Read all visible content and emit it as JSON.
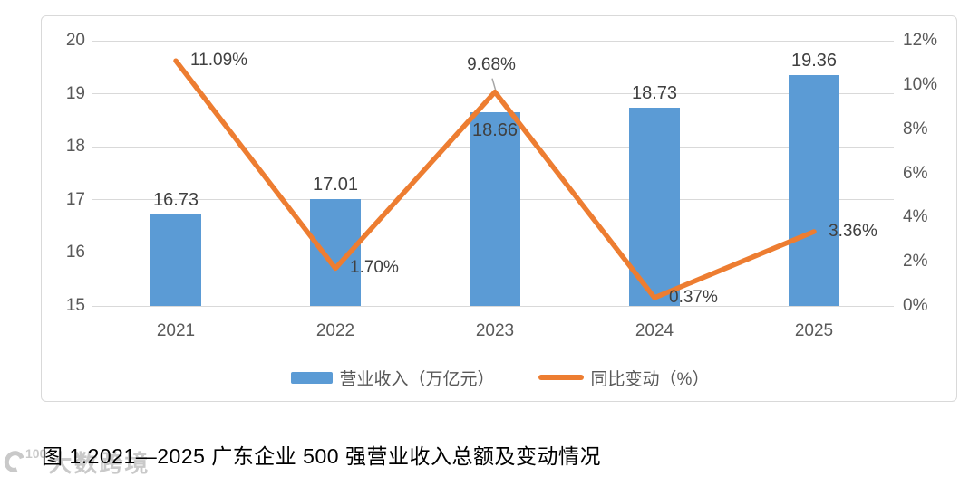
{
  "caption": "图 1.2021—2025 广东企业 500 强营业收入总额及变动情况",
  "watermark": {
    "logo_number": "100",
    "text": "大数跨境"
  },
  "legend": {
    "bar_label": "营业收入（万亿元）",
    "line_label": "同比变动（%）"
  },
  "chart_data": {
    "type": "bar+line combo",
    "categories": [
      "2021",
      "2022",
      "2023",
      "2024",
      "2025"
    ],
    "series": [
      {
        "name": "营业收入（万亿元）",
        "type": "bar",
        "axis": "left",
        "values": [
          16.73,
          17.01,
          18.66,
          18.73,
          19.36
        ],
        "labels": [
          "16.73",
          "17.01",
          "18.66",
          "18.73",
          "19.36"
        ],
        "label_position": [
          "above",
          "above",
          "inside",
          "above",
          "above"
        ]
      },
      {
        "name": "同比变动（%）",
        "type": "line",
        "axis": "right",
        "values": [
          11.09,
          1.7,
          9.68,
          0.37,
          3.36
        ],
        "labels": [
          "11.09%",
          "1.70%",
          "9.68%",
          "0.37%",
          "3.36%"
        ],
        "label_position": [
          "right",
          "right",
          "above-leader",
          "right",
          "right"
        ]
      }
    ],
    "left_axis": {
      "min": 15,
      "max": 20,
      "step": 1,
      "ticks": [
        "15",
        "16",
        "17",
        "18",
        "19",
        "20"
      ]
    },
    "right_axis": {
      "min": 0,
      "max": 12,
      "step": 2,
      "ticks": [
        "0%",
        "2%",
        "4%",
        "6%",
        "8%",
        "10%",
        "12%"
      ]
    },
    "grid": true,
    "legend_position": "bottom",
    "colors": {
      "bar": "#5b9bd5",
      "line": "#ed7d31",
      "grid": "#d9d9d9",
      "axis_text": "#595959",
      "data_label": "#404040",
      "frame_border": "#d9d9d9",
      "leader_line": "#a6a6a6"
    }
  }
}
